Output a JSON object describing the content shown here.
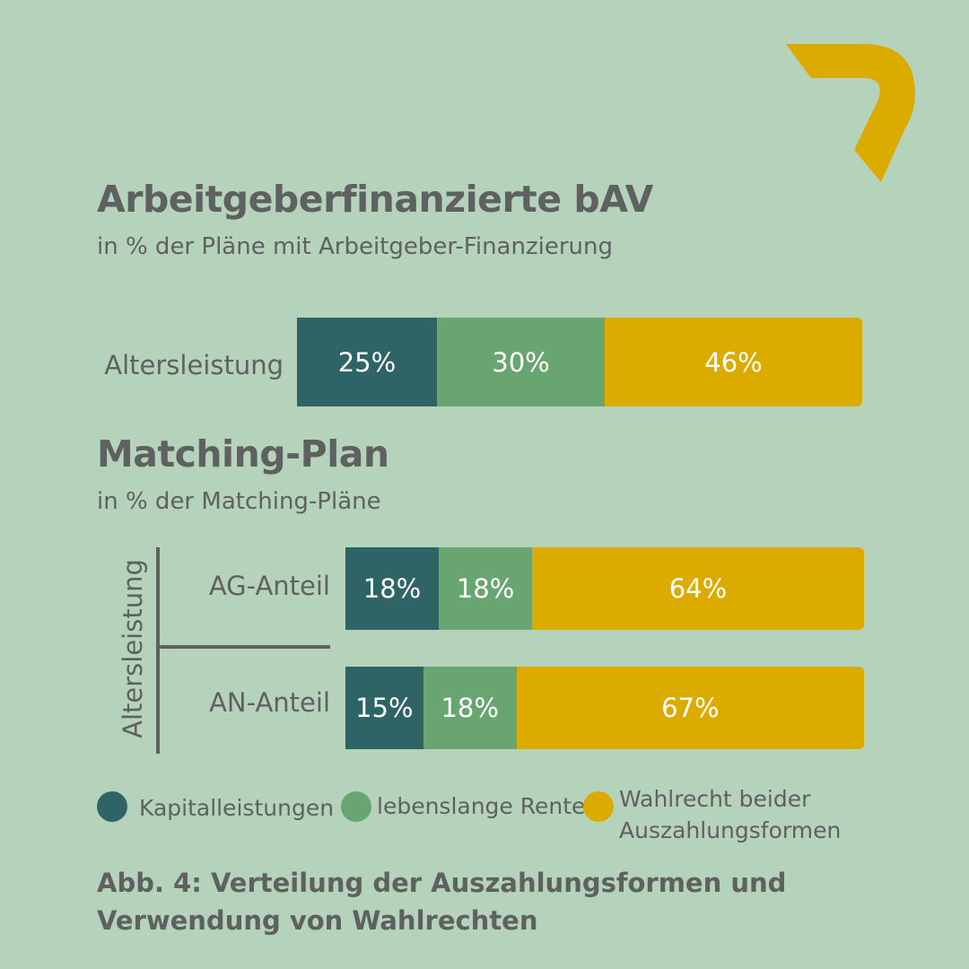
{
  "colors": {
    "background": "#b5d2bb",
    "text": "#5f6160",
    "kapital": "#2f6467",
    "rente": "#69a571",
    "wahlrecht": "#dcab00",
    "logo": "#dcab00"
  },
  "logo": {
    "icon": "seven-shape-logo"
  },
  "chart_data": [
    {
      "type": "bar",
      "orientation": "horizontal-stacked",
      "title": "Arbeitgeberfinanzierte bAV",
      "subtitle": "in % der Pläne mit Arbeitgeber-Finanzierung",
      "categories": [
        "Altersleistung"
      ],
      "series": [
        {
          "name": "Kapitalleistungen",
          "values": [
            25
          ],
          "labels": [
            "25%"
          ]
        },
        {
          "name": "lebenslange Rente",
          "values": [
            30
          ],
          "labels": [
            "30%"
          ]
        },
        {
          "name": "Wahlrecht beider Auszahlungsformen",
          "values": [
            46
          ],
          "labels": [
            "46%"
          ]
        }
      ]
    },
    {
      "type": "bar",
      "orientation": "horizontal-stacked",
      "title": "Matching-Plan",
      "subtitle": "in % der Matching-Pläne",
      "group_label": "Altersleistung",
      "categories": [
        "AG-Anteil",
        "AN-Anteil"
      ],
      "series": [
        {
          "name": "Kapitalleistungen",
          "values": [
            18,
            15
          ],
          "labels": [
            "18%",
            "15%"
          ]
        },
        {
          "name": "lebenslange Rente",
          "values": [
            18,
            18
          ],
          "labels": [
            "18%",
            "18%"
          ]
        },
        {
          "name": "Wahlrecht beider Auszahlungsformen",
          "values": [
            64,
            67
          ],
          "labels": [
            "64%",
            "67%"
          ]
        }
      ]
    }
  ],
  "legend": [
    {
      "label": "Kapitalleistungen",
      "color": "#2f6467"
    },
    {
      "label": "lebenslange Rente",
      "color": "#69a571"
    },
    {
      "label": "Wahlrecht beider Auszahlungsformen",
      "line1": "Wahlrecht beider",
      "line2": "Auszahlungsformen",
      "color": "#dcab00"
    }
  ],
  "caption": "Abb. 4: Verteilung der Auszahlungsformen und Verwendung von Wahlrechten"
}
